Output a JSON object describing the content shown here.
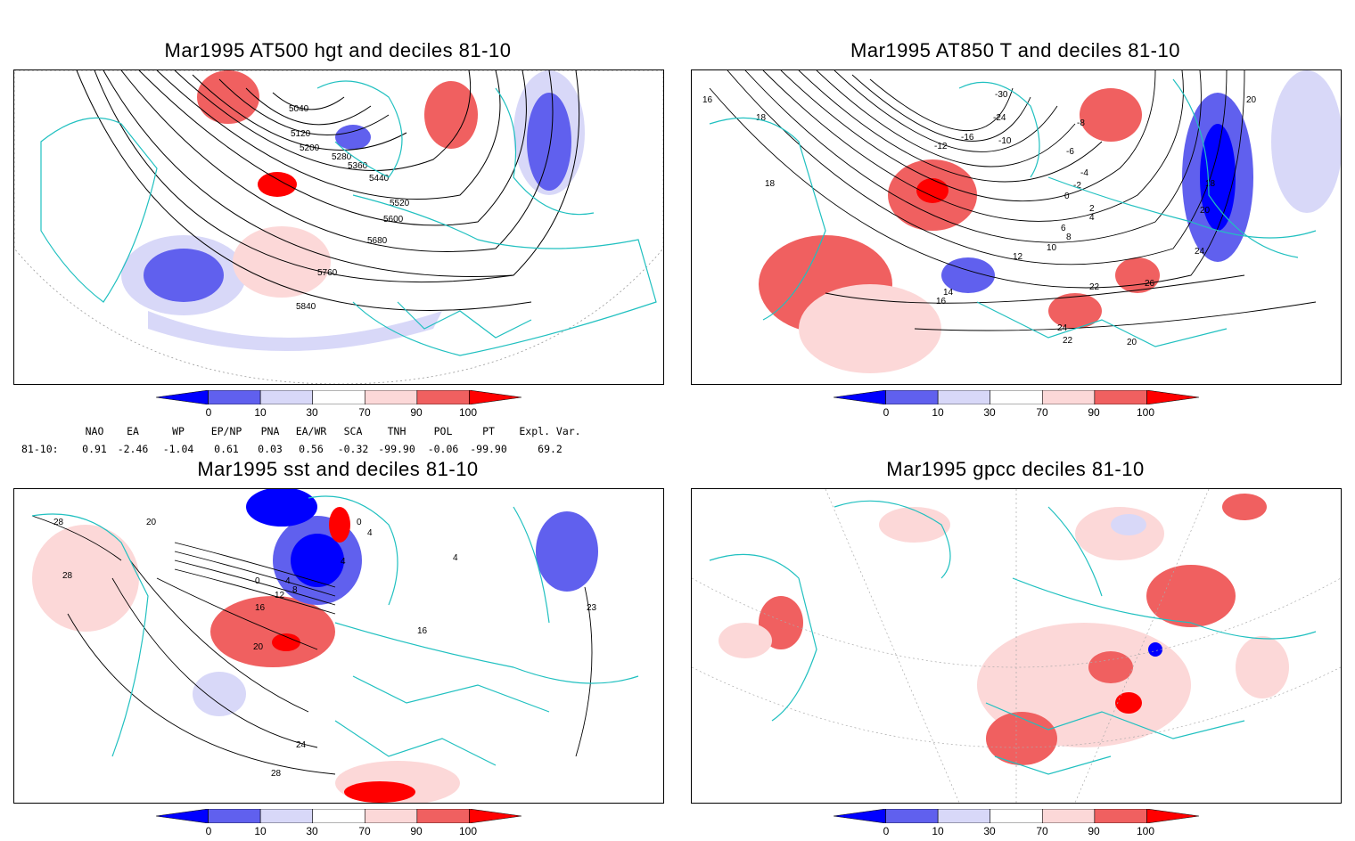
{
  "panels": [
    {
      "title": "Mar1995 AT500 hgt and deciles 81-10",
      "contour_labels": [
        "5040",
        "5120",
        "5200",
        "5280",
        "5360",
        "5440",
        "5520",
        "5600",
        "5680",
        "5760",
        "5840"
      ]
    },
    {
      "title": "Mar1995 AT850 T and deciles 81-10",
      "contour_labels": [
        "16",
        "18",
        "18",
        "-30",
        "-24",
        "-16",
        "-12",
        "-10",
        "-8",
        "-6",
        "-4",
        "-2",
        "0",
        "2",
        "4",
        "6",
        "8",
        "10",
        "12",
        "14",
        "16",
        "18",
        "20",
        "20",
        "22",
        "22",
        "24",
        "24",
        "26",
        "20"
      ]
    },
    {
      "title": "Mar1995 sst and deciles 81-10",
      "contour_labels": [
        "28",
        "28",
        "20",
        "0",
        "4",
        "8",
        "12",
        "16",
        "20",
        "4",
        "0",
        "4",
        "16",
        "4",
        "23",
        "24",
        "28"
      ]
    },
    {
      "title": "Mar1995 gpcc deciles 81-10",
      "contour_labels": []
    }
  ],
  "colorbar": {
    "labels": [
      "0",
      "10",
      "30",
      "70",
      "90",
      "100"
    ],
    "colors": [
      "#0000ff",
      "#6060ee",
      "#d8d8f8",
      "#ffffff",
      "#fcd8d8",
      "#f06060",
      "#ff0000"
    ]
  },
  "indices": {
    "headers": [
      "NAO",
      "EA",
      "WP",
      "EP/NP",
      "PNA",
      "EA/WR",
      "SCA",
      "TNH",
      "POL",
      "PT",
      "Expl. Var."
    ],
    "row_label": "81-10:",
    "values": [
      "0.91",
      "-2.46",
      "-1.04",
      "0.61",
      "0.03",
      "0.56",
      "-0.32",
      "-99.90",
      "-0.06",
      "-99.90",
      "69.2"
    ]
  },
  "colors": {
    "coastline": "#20c0c0",
    "contour": "#000000",
    "grid": "#aaaaaa"
  }
}
